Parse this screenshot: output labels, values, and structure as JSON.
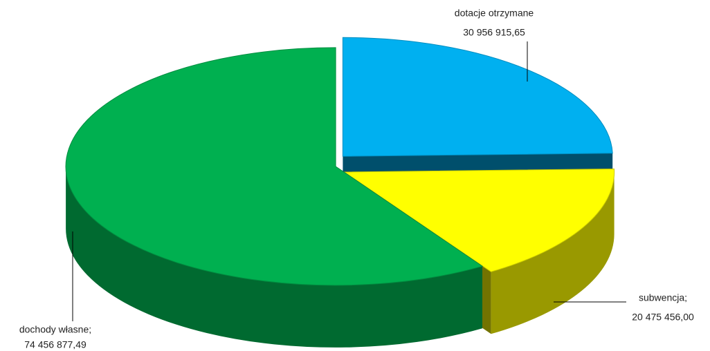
{
  "chart_data": {
    "type": "pie",
    "categories": [
      "dotacje otrzymane",
      "subwencja;",
      "dochody własne;"
    ],
    "values": [
      30956915.65,
      20475456.0,
      74456877.49
    ],
    "value_labels": [
      "30 956 915,65",
      "20 475 456,00",
      "74 456 877,49"
    ],
    "colors": [
      "#00b0f0",
      "#ffff00",
      "#00b050"
    ]
  }
}
